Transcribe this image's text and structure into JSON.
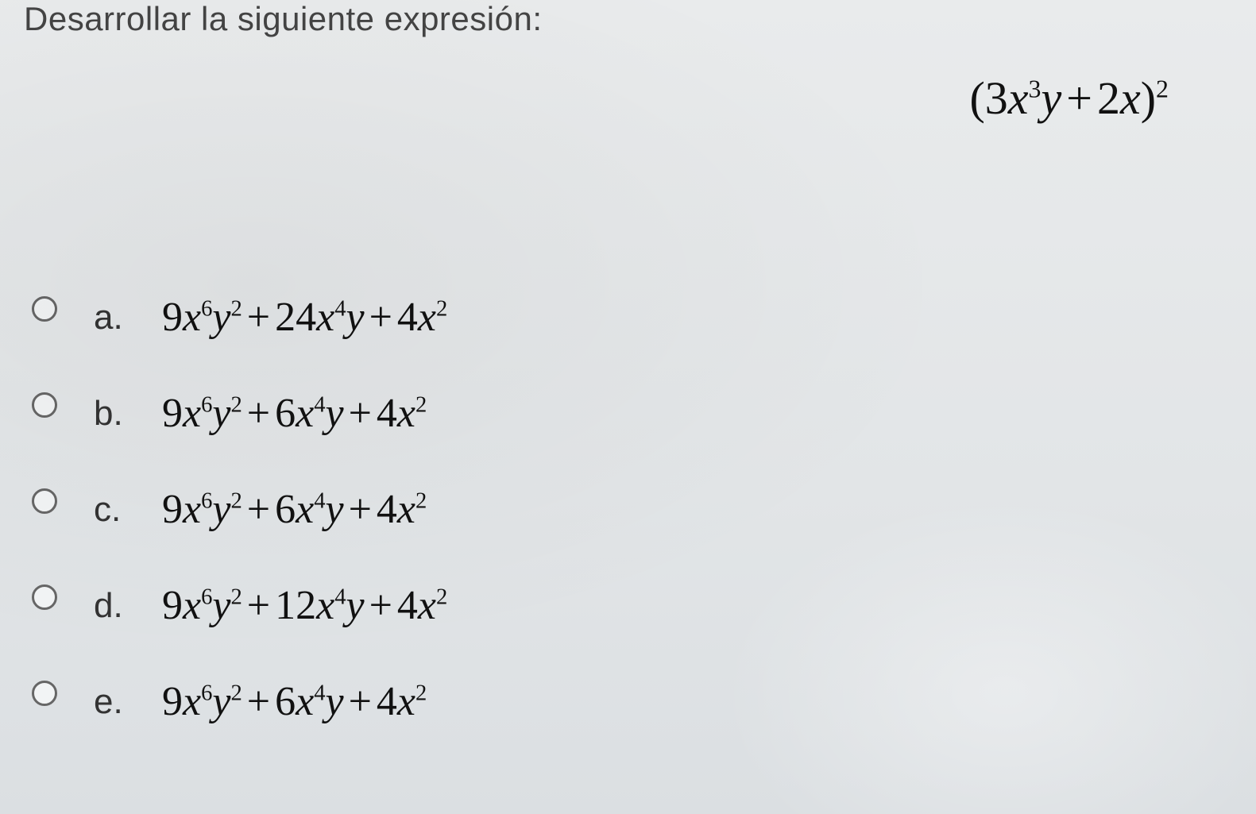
{
  "prompt": "Desarrollar la siguiente expresión:",
  "expression": {
    "terms": [
      {
        "coef": "3",
        "var": "x",
        "exp": "3",
        "trail": "y"
      },
      {
        "op": "+",
        "coef": "2",
        "var": "x"
      }
    ],
    "outer_exp": "2",
    "open": "(",
    "close": ")"
  },
  "options": [
    {
      "label": "a.",
      "terms": [
        {
          "coef": "9",
          "var1": "x",
          "exp1": "6",
          "var2": "y",
          "exp2": "2"
        },
        {
          "op": "+",
          "coef": "24",
          "var1": "x",
          "exp1": "4",
          "var2": "y"
        },
        {
          "op": "+",
          "coef": "4",
          "var1": "x",
          "exp1": "2"
        }
      ]
    },
    {
      "label": "b.",
      "terms": [
        {
          "coef": "9",
          "var1": "x",
          "exp1": "6",
          "var2": "y",
          "exp2": "2"
        },
        {
          "op": "+",
          "coef": "6",
          "var1": "x",
          "exp1": "4",
          "var2": "y"
        },
        {
          "op": "+",
          "coef": "4",
          "var1": "x",
          "exp1": "2"
        }
      ]
    },
    {
      "label": "c.",
      "terms": [
        {
          "coef": "9",
          "var1": "x",
          "exp1": "6",
          "var2": "y",
          "exp2": "2"
        },
        {
          "op": "+",
          "coef": "6",
          "var1": "x",
          "exp1": "4",
          "var2": "y"
        },
        {
          "op": "+",
          "coef": "4",
          "var1": "x",
          "exp1": "2"
        }
      ]
    },
    {
      "label": "d.",
      "terms": [
        {
          "coef": "9",
          "var1": "x",
          "exp1": "6",
          "var2": "y",
          "exp2": "2"
        },
        {
          "op": "+",
          "coef": "12",
          "var1": "x",
          "exp1": "4",
          "var2": "y"
        },
        {
          "op": "+",
          "coef": "4",
          "var1": "x",
          "exp1": "2"
        }
      ]
    },
    {
      "label": "e.",
      "terms": [
        {
          "coef": "9",
          "var1": "x",
          "exp1": "6",
          "var2": "y",
          "exp2": "2"
        },
        {
          "op": "+",
          "coef": "6",
          "var1": "x",
          "exp1": "4",
          "var2": "y"
        },
        {
          "op": "+",
          "coef": "4",
          "var1": "x",
          "exp1": "2"
        }
      ]
    }
  ],
  "colors": {
    "background": "#e6e8ea",
    "text": "#222222",
    "radio_border": "#666666"
  },
  "fonts": {
    "prompt_size_pt": 32,
    "expression_size_pt": 44,
    "option_label_size_pt": 33,
    "option_math_size_pt": 40
  }
}
